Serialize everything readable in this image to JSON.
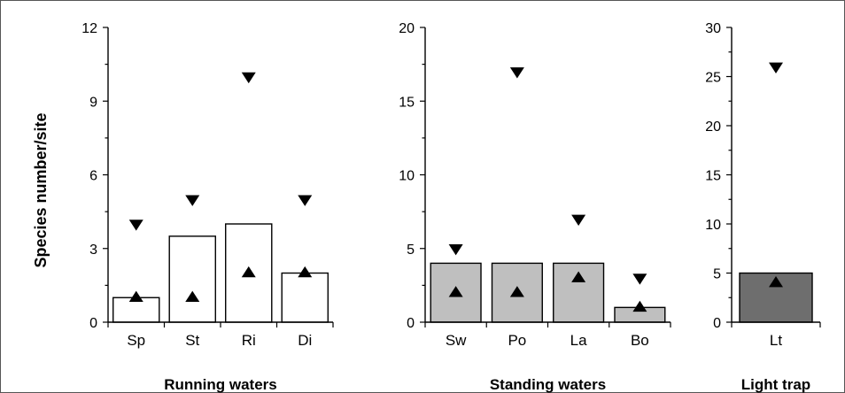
{
  "ylabel": "Species number/site",
  "chart_data": [
    {
      "type": "bar",
      "xlabel": "Running waters",
      "categories": [
        "Sp",
        "St",
        "Ri",
        "Di"
      ],
      "values": [
        1,
        3.5,
        4,
        2
      ],
      "min_values": [
        1,
        1,
        2,
        2
      ],
      "max_values": [
        4,
        5,
        10,
        5
      ],
      "ylim": [
        0,
        12
      ],
      "yticks": [
        0,
        3,
        6,
        9,
        12
      ],
      "bar_color": "#ffffff"
    },
    {
      "type": "bar",
      "xlabel": "Standing waters",
      "categories": [
        "Sw",
        "Po",
        "La",
        "Bo"
      ],
      "values": [
        4,
        4,
        4,
        1
      ],
      "min_values": [
        2,
        2,
        3,
        1
      ],
      "max_values": [
        5,
        17,
        7,
        3
      ],
      "ylim": [
        0,
        20
      ],
      "yticks": [
        0,
        5,
        10,
        15,
        20
      ],
      "bar_color": "#bfbfbf"
    },
    {
      "type": "bar",
      "xlabel": "Light trap",
      "categories": [
        "Lt"
      ],
      "values": [
        5
      ],
      "min_values": [
        4
      ],
      "max_values": [
        26
      ],
      "ylim": [
        0,
        30
      ],
      "yticks": [
        0,
        5,
        10,
        15,
        20,
        25,
        30
      ],
      "bar_color": "#6e6e6e"
    }
  ]
}
